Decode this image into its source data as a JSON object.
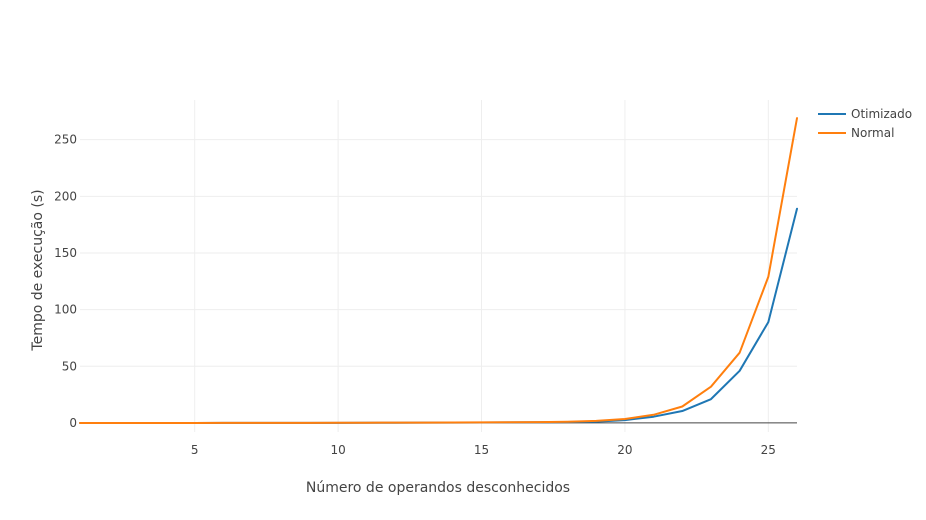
{
  "chart_data": {
    "type": "line",
    "title": "",
    "xlabel": "Número de operandos desconhecidos",
    "ylabel": "Tempo de execução (s)",
    "xlim": [
      1,
      26
    ],
    "ylim": [
      -8,
      285
    ],
    "xticks": [
      5,
      10,
      15,
      20,
      25
    ],
    "yticks": [
      0,
      50,
      100,
      150,
      200,
      250
    ],
    "grid": true,
    "legend_position": "top-right",
    "x": [
      1,
      2,
      3,
      4,
      5,
      6,
      7,
      8,
      9,
      10,
      11,
      12,
      13,
      14,
      15,
      16,
      17,
      18,
      19,
      20,
      21,
      22,
      23,
      24,
      25,
      26
    ],
    "series": [
      {
        "name": "Otimizado",
        "color": "#1f77b4",
        "values": [
          0,
          0,
          0,
          0,
          0,
          0.1,
          0.1,
          0.1,
          0.1,
          0.1,
          0.2,
          0.2,
          0.3,
          0.3,
          0.4,
          0.5,
          0.6,
          0.8,
          1.2,
          2.5,
          5.5,
          10.5,
          21,
          46,
          89,
          189
        ]
      },
      {
        "name": "Normal",
        "color": "#ff7f0e",
        "values": [
          0,
          0,
          0,
          0,
          0,
          0.1,
          0.1,
          0.1,
          0.1,
          0.2,
          0.2,
          0.3,
          0.3,
          0.4,
          0.5,
          0.6,
          0.7,
          1.0,
          1.8,
          3.5,
          7.2,
          14.5,
          32,
          62,
          129,
          269
        ]
      }
    ]
  }
}
